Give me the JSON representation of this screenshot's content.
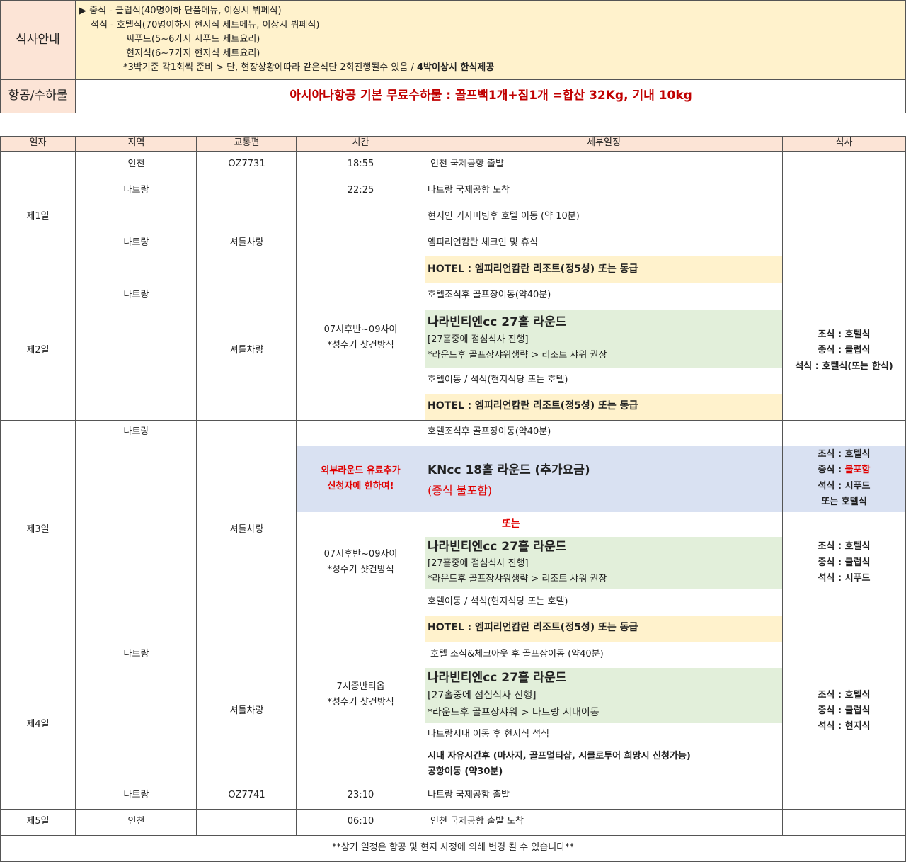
{
  "meal_info": {
    "label": "식사안내",
    "lines": [
      "▶ 중식 - 클럽식(40명이하 단품메뉴, 이상시 뷔페식)",
      "석식 - 호텔식(70명이하시 현지식 세트메뉴, 이상시 뷔페식)",
      "씨푸드(5~6가지 시푸드 세트요리)",
      "현지식(6~7가지 현지식 세트요리)",
      "*3박기준 각1회씩 준비 > 단, 현장상황에따라 같은식단 2회진행될수 있음 / "
    ],
    "bold_suffix": "4박이상시 한식제공"
  },
  "baggage": {
    "label": "항공/수하물",
    "text": "아시아나항공 기본 무료수하물 :  골프백1개+짐1개 =합산 32Kg,  기내 10kg"
  },
  "headers": [
    "일자",
    "지역",
    "교통편",
    "시간",
    "세부일정",
    "식사"
  ],
  "days": [
    {
      "day": "제1일",
      "regions": [
        "인천",
        "나트랑",
        "나트랑"
      ],
      "transport": [
        "OZ7731",
        "셔틀차량"
      ],
      "times": [
        "18:55",
        "22:25"
      ],
      "details": [
        "인천 국제공항 출발",
        "나트랑 국제공항 도착",
        "현지인 기사미팅후 호텔 이동 (약 10분)",
        "엠피리언캄란 체크인 및 휴식",
        "HOTEL : 엠피리언캄란 리조트(정5성) 또는 동급"
      ]
    },
    {
      "day": "제2일",
      "regions": [
        "나트랑"
      ],
      "transport": [
        "셔틀차량"
      ],
      "times": [
        "07시후반~09사이",
        "*성수기 샷건방식"
      ],
      "details": [
        "호텔조식후 골프장이동(약40분)",
        "나라빈티엔cc 27홀 라운드",
        "[27홀중에 점심식사 진행]",
        "*라운드후 골프장샤워생략 > 리조트 샤워 권장",
        "호텔이동 / 석식(현지식당 또는 호텔)",
        "HOTEL : 엠피리언캄란 리조트(정5성) 또는 동급"
      ],
      "meals": [
        "조식 : 호텔식",
        "중식 : 클럽식",
        "석식 : 호텔식(또는 한식)"
      ]
    },
    {
      "day": "제3일",
      "regions": [
        "나트랑"
      ],
      "transport": [
        "셔틀차량"
      ],
      "notice": [
        "외부라운드 유료추가",
        "신청자에 한하여!"
      ],
      "times": [
        "07시후반~09사이",
        "*성수기 샷건방식"
      ],
      "details": [
        "호텔조식후 골프장이동(약40분)",
        "KNcc 18홀 라운드 (추가요금)",
        "(중식 불포함)",
        "또는",
        "나라빈티엔cc 27홀 라운드",
        "[27홀중에 점심식사 진행]",
        "*라운드후 골프장샤워생략 > 리조트 샤워 권장",
        "호텔이동 / 석식(현지식당 또는 호텔)",
        "HOTEL : 엠피리언캄란 리조트(정5성) 또는 동급"
      ],
      "meals_a": {
        "breakfast": "조식 : 호텔식",
        "lunch_prefix": "중식 : ",
        "lunch_value": "불포함",
        "dinner": "석식 : 시푸드",
        "alt": "또는 호텔식"
      },
      "meals_b": [
        "조식 : 호텔식",
        "중식 : 클럽식",
        "석식 : 시푸드"
      ]
    },
    {
      "day": "제4일",
      "regions": [
        "나트랑",
        "나트랑"
      ],
      "transport": [
        "셔틀차량",
        "OZ7741"
      ],
      "times": [
        "7시중반티옵",
        "*성수기 샷건방식",
        "23:10"
      ],
      "details": [
        "호텔 조식&체크아웃 후 골프장이동 (약40분)",
        "나라빈티엔cc 27홀 라운드",
        "[27홀중에 점심식사 진행]",
        "*라운드후 골프장샤워 > 나트랑 시내이동",
        "나트랑시내 이동 후 현지식 석식",
        "시내 자유시간후  (마사지, 골프멀티샵, 시클로투어 희망시 신청가능)",
        "공항이동 (약30분)",
        "나트랑 국제공항 출발"
      ],
      "meals": [
        "조식 : 호텔식",
        "중식 : 클럽식",
        "석식 : 현지식"
      ]
    },
    {
      "day": "제5일",
      "regions": [
        "인천"
      ],
      "times": [
        "06:10"
      ],
      "details": [
        "인천 국제공항 출발 도착"
      ]
    }
  ],
  "footer": "**상기 일정은 항공 및 현지 사정에 의해 변경 될 수 있습니다**",
  "colors": {
    "label_bg": "#fce4d6",
    "meal_bg": "#fff2cc",
    "green": "#e2efda",
    "blue": "#d9e1f2",
    "red": "#e00000"
  }
}
